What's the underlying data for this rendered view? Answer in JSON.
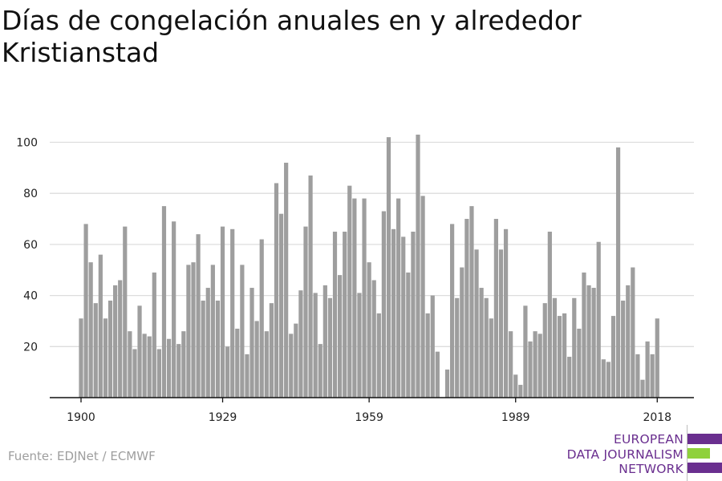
{
  "title": "Días de congelación anuales en y alrededor Kristianstad",
  "source": "Fuente: EDJNet / ECMWF",
  "logo": {
    "lines": [
      "EUROPEAN",
      "DATA JOURNALISM",
      "NETWORK"
    ],
    "colors": {
      "text": "#6a2f8f",
      "purple": "#6a2f8f",
      "green": "#8fd13b"
    }
  },
  "colors": {
    "bar": "#9e9e9e",
    "grid": "#dddddd",
    "axis": "#111111"
  },
  "chart_data": {
    "type": "bar",
    "title": "Días de congelación anuales en y alrededor Kristianstad",
    "xlabel": "",
    "ylabel": "",
    "x_ticks": [
      1900,
      1929,
      1959,
      1989,
      2018
    ],
    "y_ticks": [
      20,
      40,
      60,
      80,
      100
    ],
    "ylim": [
      0,
      110
    ],
    "grid": true,
    "categories": [
      1900,
      1901,
      1902,
      1903,
      1904,
      1905,
      1906,
      1907,
      1908,
      1909,
      1910,
      1911,
      1912,
      1913,
      1914,
      1915,
      1916,
      1917,
      1918,
      1919,
      1920,
      1921,
      1922,
      1923,
      1924,
      1925,
      1926,
      1927,
      1928,
      1929,
      1930,
      1931,
      1932,
      1933,
      1934,
      1935,
      1936,
      1937,
      1938,
      1939,
      1940,
      1941,
      1942,
      1943,
      1944,
      1945,
      1946,
      1947,
      1948,
      1949,
      1950,
      1951,
      1952,
      1953,
      1954,
      1955,
      1956,
      1957,
      1958,
      1959,
      1960,
      1961,
      1962,
      1963,
      1964,
      1965,
      1966,
      1967,
      1968,
      1969,
      1970,
      1971,
      1972,
      1973,
      1974,
      1975,
      1976,
      1977,
      1978,
      1979,
      1980,
      1981,
      1982,
      1983,
      1984,
      1985,
      1986,
      1987,
      1988,
      1989,
      1990,
      1991,
      1992,
      1993,
      1994,
      1995,
      1996,
      1997,
      1998,
      1999,
      2000,
      2001,
      2002,
      2003,
      2004,
      2005,
      2006,
      2007,
      2008,
      2009,
      2010,
      2011,
      2012,
      2013,
      2014,
      2015,
      2016,
      2017,
      2018
    ],
    "values": [
      31,
      68,
      53,
      37,
      56,
      31,
      38,
      44,
      46,
      67,
      26,
      19,
      36,
      25,
      24,
      49,
      19,
      75,
      23,
      69,
      21,
      26,
      52,
      53,
      64,
      38,
      43,
      52,
      38,
      67,
      20,
      66,
      27,
      52,
      17,
      43,
      30,
      62,
      26,
      37,
      84,
      72,
      92,
      25,
      29,
      42,
      67,
      87,
      41,
      21,
      44,
      39,
      65,
      48,
      65,
      83,
      78,
      41,
      78,
      53,
      46,
      33,
      73,
      102,
      66,
      78,
      63,
      49,
      65,
      103,
      79,
      33,
      40,
      18,
      0,
      11,
      68,
      39,
      51,
      70,
      75,
      58,
      43,
      39,
      31,
      70,
      58,
      66,
      26,
      9,
      5,
      36,
      22,
      26,
      25,
      37,
      65,
      39,
      32,
      33,
      16,
      39,
      27,
      49,
      44,
      43,
      61,
      15,
      14,
      32,
      98,
      38,
      44,
      51,
      17,
      7,
      22,
      17,
      31
    ]
  }
}
